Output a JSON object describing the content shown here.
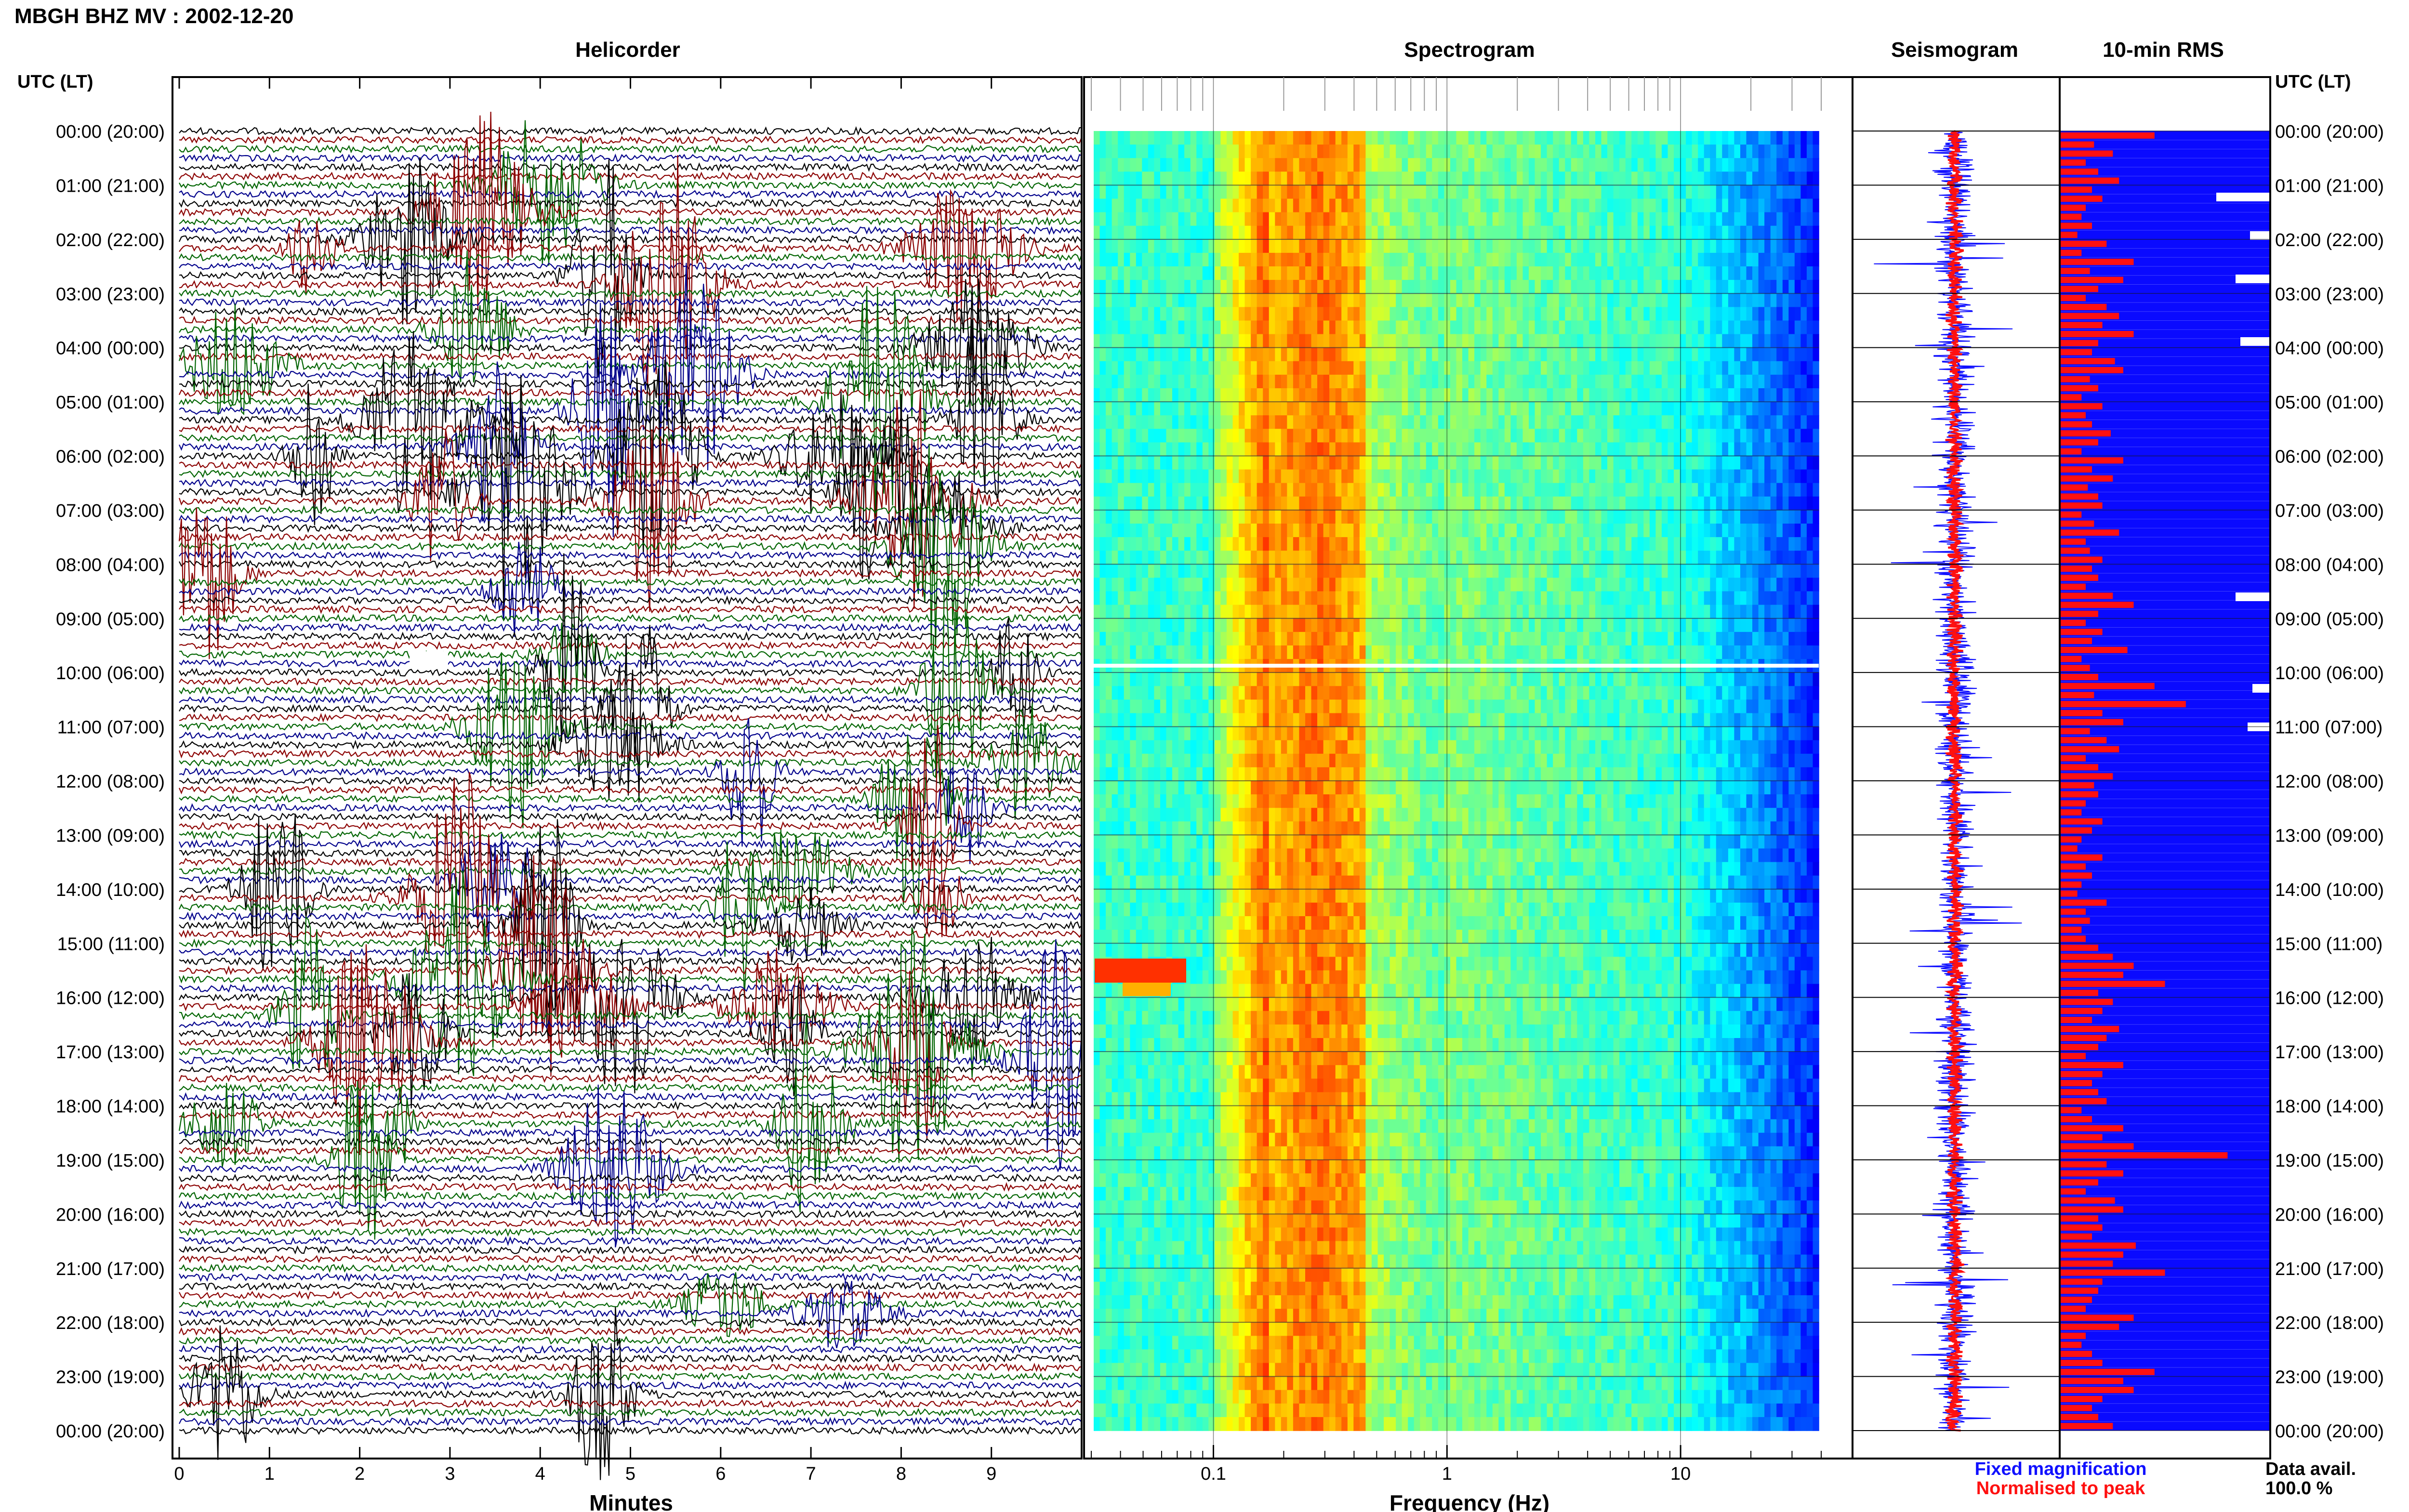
{
  "header": {
    "station_title": "MBGH BHZ MV : 2002-12-20"
  },
  "panels": {
    "helicorder": "Helicorder",
    "spectrogram": "Spectrogram",
    "seismogram": "Seismogram",
    "rms": "10-min RMS"
  },
  "axis": {
    "utc_header": "UTC (LT)",
    "minutes_label": "Minutes",
    "frequency_label": "Frequency (Hz)"
  },
  "legend": {
    "fixed": "Fixed magnification",
    "normalised": "Normalised to peak",
    "fixed_color": "#1010ff",
    "normalised_color": "#ff1010"
  },
  "availability": {
    "label": "Data avail.",
    "value": "100.0 %"
  },
  "colors": {
    "trace_colors": [
      "#000000",
      "#8b0000",
      "#006400",
      "#00008b"
    ],
    "spectrogram_background": "#0000c8",
    "rms_bar": "#ff1010",
    "rms_background": "#0a0aff"
  },
  "chart_data": [
    {
      "type": "helicorder",
      "title": "Helicorder",
      "xlabel": "Minutes",
      "xticks": [
        "0",
        "1",
        "2",
        "3",
        "4",
        "5",
        "6",
        "7",
        "8",
        "9"
      ],
      "x_range": [
        0,
        10
      ],
      "rows_per_hour": 6,
      "hour_labels": [
        "00:00 (20:00)",
        "01:00 (21:00)",
        "02:00 (22:00)",
        "03:00 (23:00)",
        "04:00 (00:00)",
        "05:00 (01:00)",
        "06:00 (02:00)",
        "07:00 (03:00)",
        "08:00 (04:00)",
        "09:00 (05:00)",
        "10:00 (06:00)",
        "11:00 (07:00)",
        "12:00 (08:00)",
        "13:00 (09:00)",
        "14:00 (10:00)",
        "15:00 (11:00)",
        "16:00 (12:00)",
        "17:00 (13:00)",
        "18:00 (14:00)",
        "19:00 (15:00)",
        "20:00 (16:00)",
        "21:00 (17:00)",
        "22:00 (18:00)",
        "23:00 (19:00)",
        "00:00 (20:00)"
      ]
    },
    {
      "type": "heatmap",
      "title": "Spectrogram",
      "xlabel": "Frequency (Hz)",
      "xscale": "log",
      "xticks": [
        "0.1",
        "1",
        "10"
      ],
      "x_range": [
        0.03,
        40
      ],
      "peak_band_hz": [
        0.2,
        0.4
      ],
      "colormap": "jet"
    },
    {
      "type": "line",
      "title": "Seismogram",
      "series": [
        {
          "name": "Fixed magnification",
          "color": "#1010ff"
        },
        {
          "name": "Normalised to peak",
          "color": "#ff1010"
        }
      ]
    },
    {
      "type": "bar",
      "title": "10-min RMS",
      "bar_count": 144,
      "values_relative": [
        0.45,
        0.16,
        0.25,
        0.12,
        0.18,
        0.28,
        0.15,
        0.2,
        0.12,
        0.1,
        0.15,
        0.08,
        0.22,
        0.1,
        0.35,
        0.14,
        0.3,
        0.18,
        0.12,
        0.22,
        0.28,
        0.2,
        0.35,
        0.18,
        0.15,
        0.26,
        0.3,
        0.14,
        0.18,
        0.1,
        0.2,
        0.12,
        0.15,
        0.24,
        0.18,
        0.1,
        0.3,
        0.15,
        0.25,
        0.13,
        0.18,
        0.2,
        0.1,
        0.16,
        0.28,
        0.12,
        0.14,
        0.2,
        0.15,
        0.18,
        0.12,
        0.25,
        0.35,
        0.18,
        0.12,
        0.2,
        0.15,
        0.32,
        0.1,
        0.14,
        0.18,
        0.45,
        0.16,
        0.6,
        0.2,
        0.3,
        0.14,
        0.22,
        0.28,
        0.12,
        0.18,
        0.25,
        0.16,
        0.18,
        0.12,
        0.1,
        0.2,
        0.15,
        0.1,
        0.08,
        0.2,
        0.12,
        0.15,
        0.1,
        0.08,
        0.22,
        0.12,
        0.14,
        0.1,
        0.12,
        0.18,
        0.25,
        0.35,
        0.3,
        0.5,
        0.18,
        0.25,
        0.2,
        0.15,
        0.28,
        0.22,
        0.18,
        0.12,
        0.3,
        0.2,
        0.15,
        0.18,
        0.22,
        0.1,
        0.15,
        0.3,
        0.2,
        0.35,
        0.8,
        0.22,
        0.3,
        0.18,
        0.12,
        0.26,
        0.3,
        0.18,
        0.2,
        0.15,
        0.36,
        0.3,
        0.25,
        0.5,
        0.2,
        0.18,
        0.15,
        0.12,
        0.35,
        0.28,
        0.12,
        0.1,
        0.15,
        0.2,
        0.45,
        0.3,
        0.35,
        0.2,
        0.15,
        0.18,
        0.25
      ]
    }
  ]
}
